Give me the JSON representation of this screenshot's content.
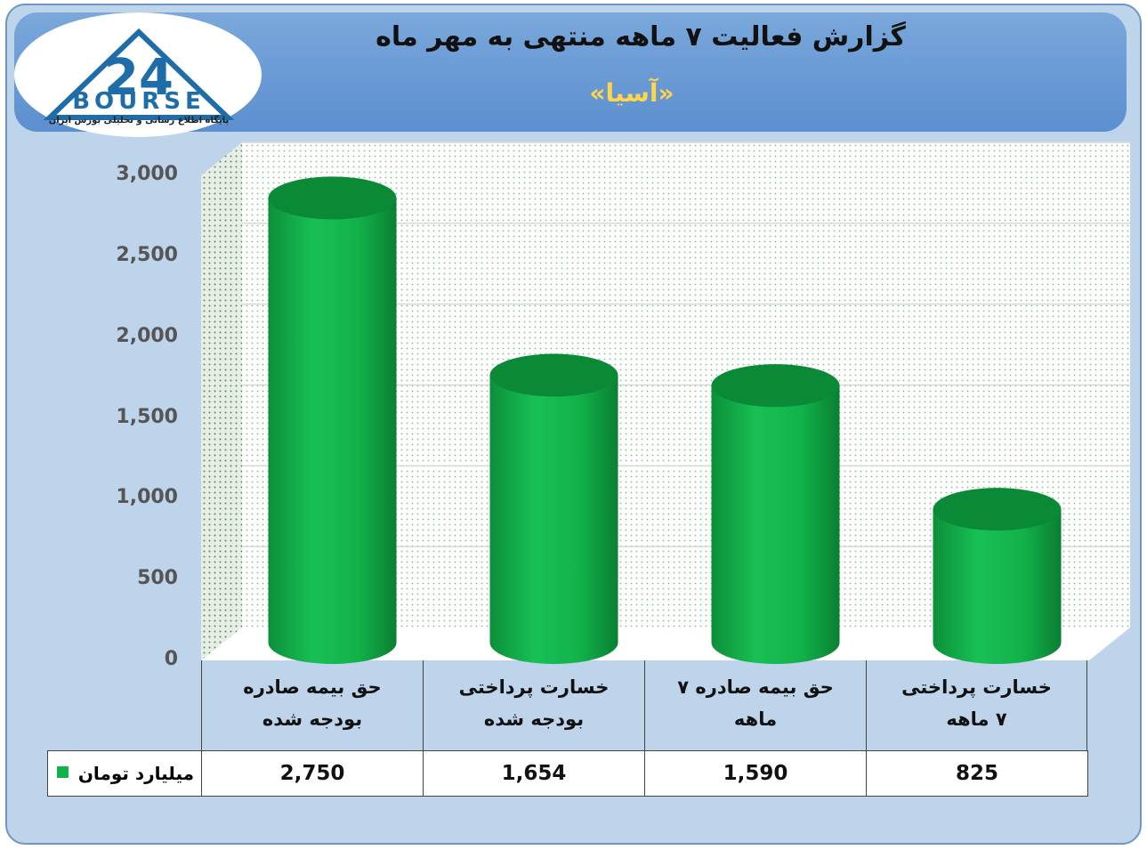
{
  "header": {
    "title": "گزارش فعالیت ۷ ماهه منتهی به مهر ماه",
    "subtitle": "«آسیا»"
  },
  "logo": {
    "brand": "BOURSE",
    "number": "24",
    "tagline": "پایگاه اطلاع رسانی و تحلیلی بورس ایران"
  },
  "colors": {
    "bar": "#12b24a",
    "bar_top": "#0a8a36",
    "background": "#bdd4eb",
    "header": "#5c8fcf",
    "subtitle": "#ffd54a"
  },
  "chart_data": {
    "type": "bar",
    "title": "گزارش فعالیت ۷ ماهه منتهی به مهر ماه",
    "subtitle": "«آسیا»",
    "categories": [
      [
        "حق بیمه صادره",
        "بودجه شده"
      ],
      [
        "خسارت پرداختی",
        "بودجه شده"
      ],
      [
        "حق بیمه صادره ۷",
        "ماهه"
      ],
      [
        "خسارت پرداختی",
        "۷ ماهه"
      ]
    ],
    "series": [
      {
        "name": "میلیارد تومان",
        "values": [
          2750,
          1654,
          1590,
          825
        ]
      }
    ],
    "value_labels": [
      "2,750",
      "1,654",
      "1,590",
      "825"
    ],
    "y_ticks": [
      "0",
      "500",
      "1,000",
      "1,500",
      "2,000",
      "2,500",
      "3,000"
    ],
    "ylim": [
      0,
      3000
    ],
    "grid": true,
    "legend": "data-table"
  }
}
